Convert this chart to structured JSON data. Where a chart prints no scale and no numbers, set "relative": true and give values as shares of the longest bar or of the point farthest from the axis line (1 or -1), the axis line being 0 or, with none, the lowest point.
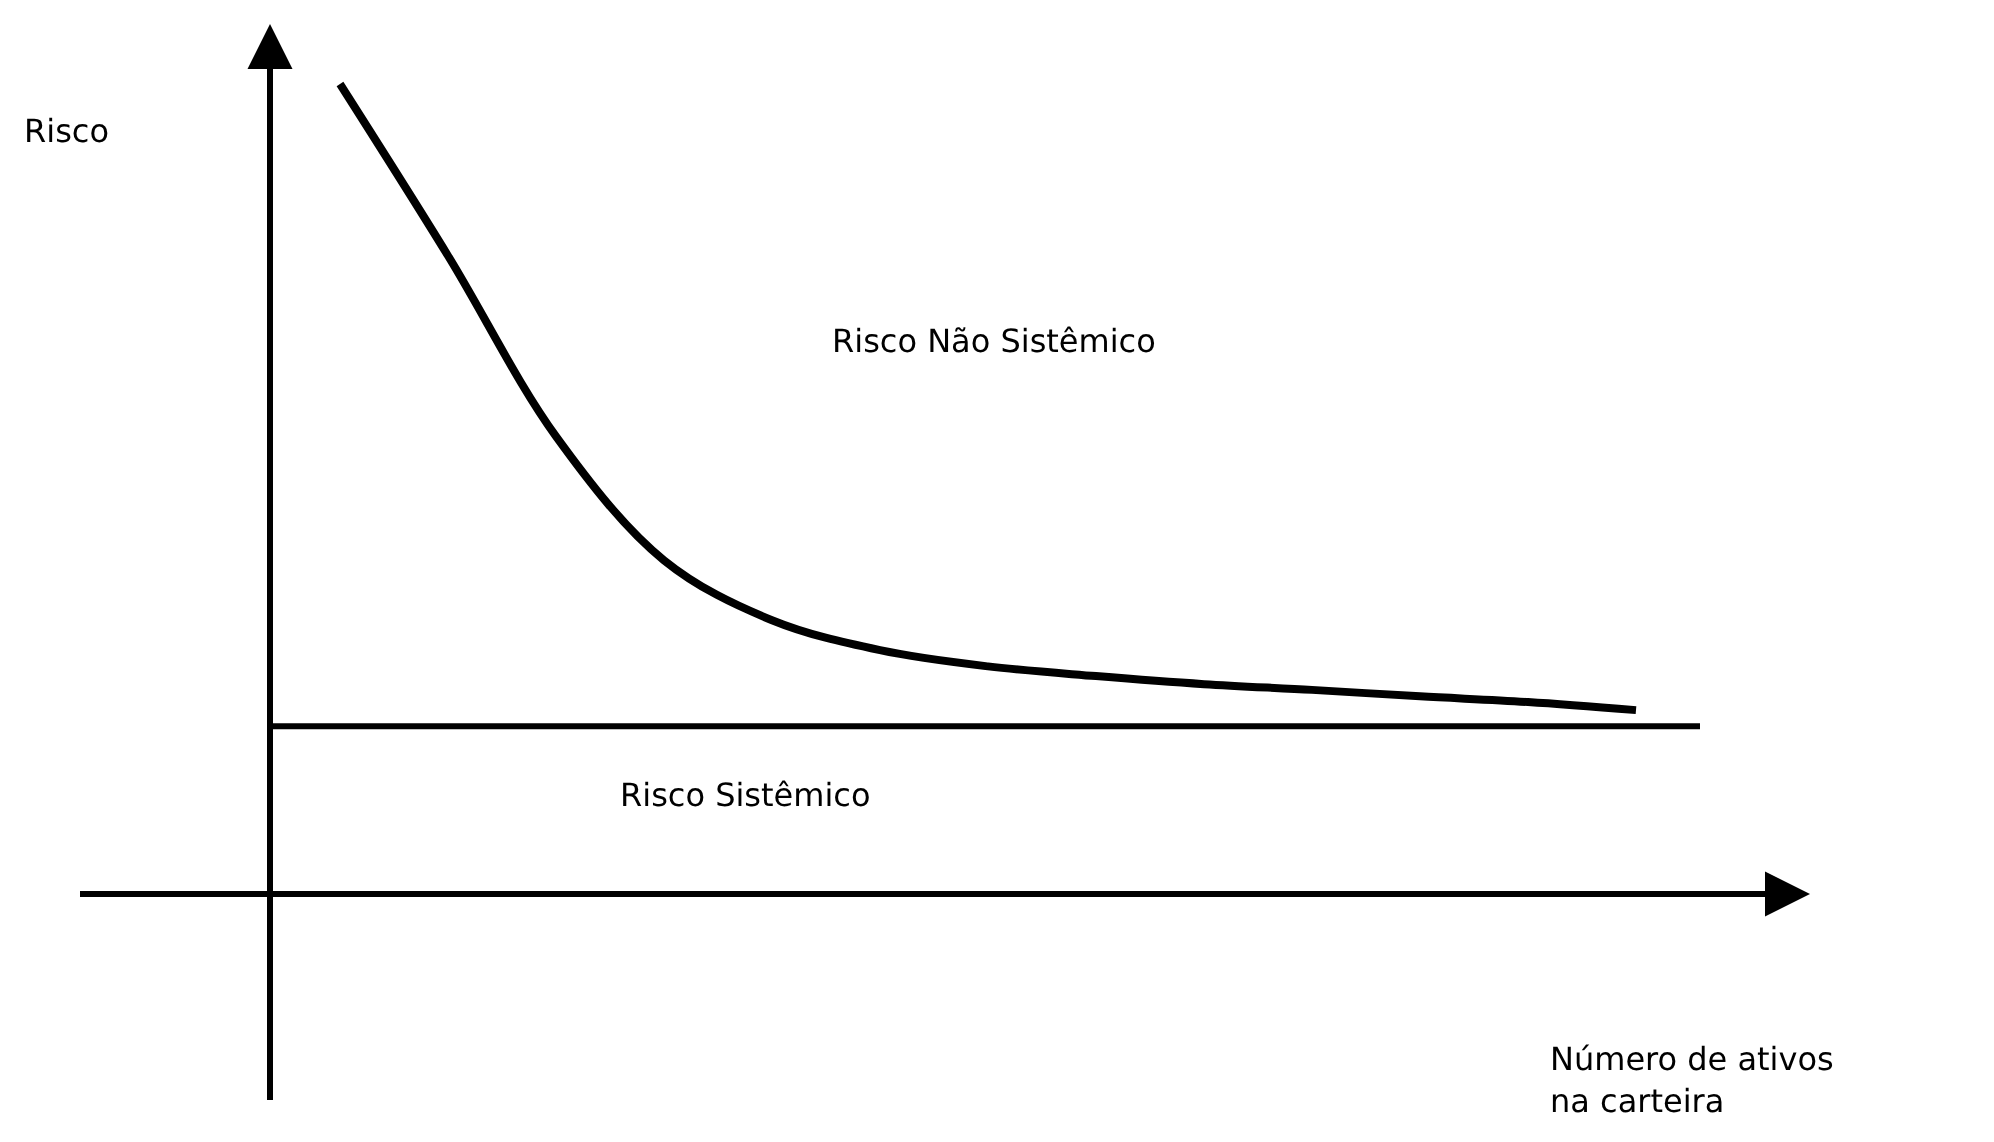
{
  "chart_data": {
    "type": "line",
    "relative": true,
    "xlabel": "Número de ativos\nna carteira",
    "categories": [
      null,
      null,
      null,
      null,
      null,
      null,
      null,
      null,
      null,
      null,
      null,
      null,
      null
    ],
    "series": [
      {
        "color": "#000000",
        "values": [
          1.0,
          0.788,
          0.565,
          0.412,
          0.338,
          0.301,
          0.281,
          0.269,
          0.259,
          0.252,
          0.244,
          0.237,
          0.227
        ]
      }
    ],
    "ref_lines": [
      {
        "axis": "y",
        "value": 0.207,
        "label": "Risco Sistêmico",
        "color": "#000000",
        "line_style": "solid"
      }
    ],
    "annotations": [
      "Risco Não Sistêmico",
      "Risco"
    ],
    "legend": false,
    "marker": "none",
    "line_style": "solid"
  }
}
